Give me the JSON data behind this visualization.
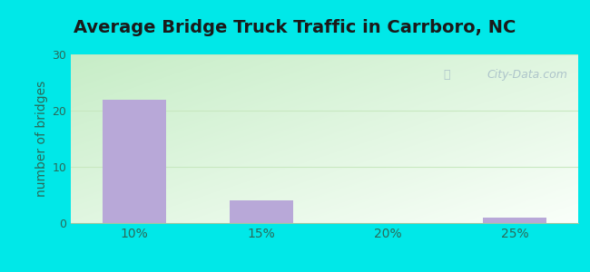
{
  "title": "Average Bridge Truck Traffic in Carrboro, NC",
  "title_fontsize": 14,
  "ylabel": "number of bridges",
  "ylabel_fontsize": 10,
  "categories": [
    "10%",
    "15%",
    "20%",
    "25%"
  ],
  "values": [
    22,
    4,
    0,
    1
  ],
  "bar_color": "#b8a8d8",
  "bar_width": 0.5,
  "ylim": [
    0,
    30
  ],
  "yticks": [
    0,
    10,
    20,
    30
  ],
  "bg_outer": "#00e8e8",
  "watermark": "City-Data.com",
  "watermark_color": "#a8bfc8",
  "title_color": "#1a1a1a",
  "label_color": "#2a6a5a",
  "tick_color": "#2a6a5a",
  "grid_color": "#d0e8d0"
}
